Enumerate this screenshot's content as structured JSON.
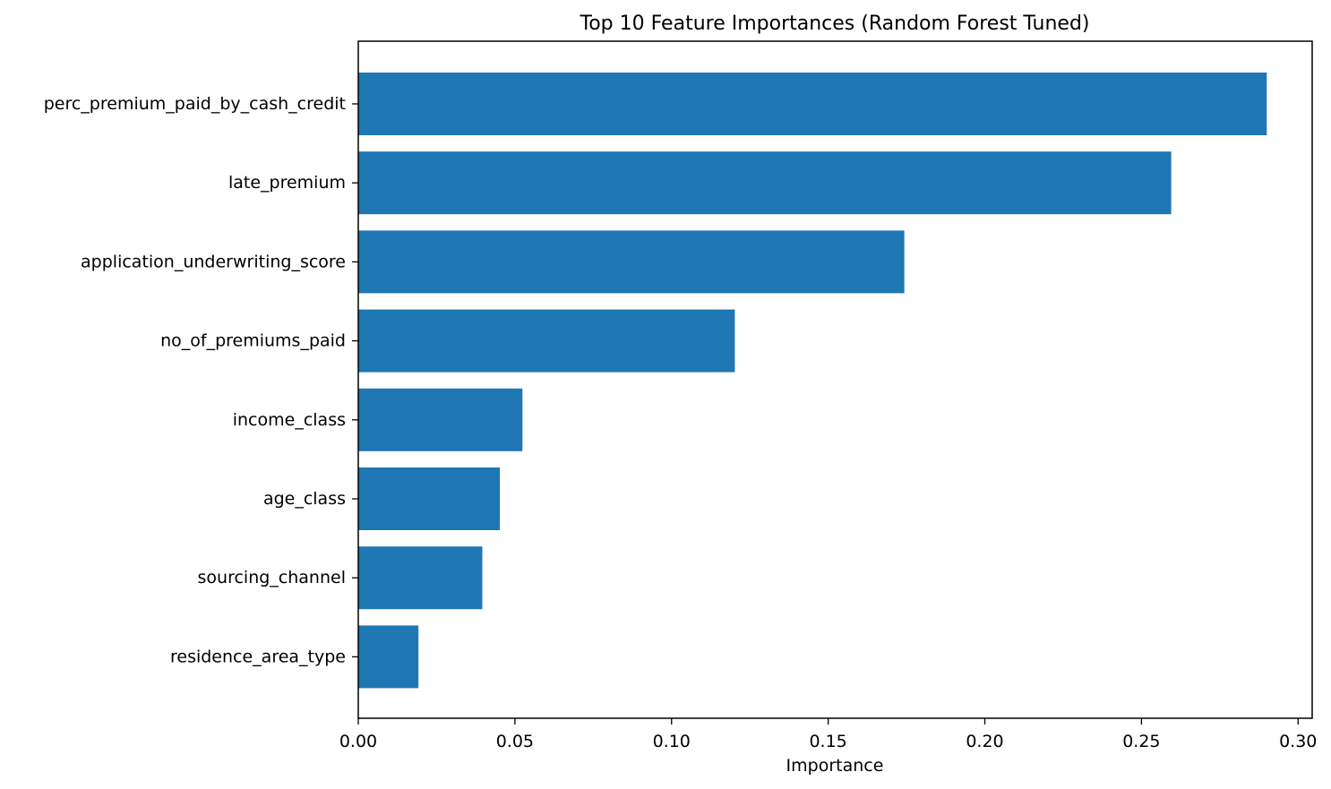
{
  "chart_data": {
    "type": "bar",
    "orientation": "horizontal",
    "title": "Top 10 Feature Importances (Random Forest Tuned)",
    "xlabel": "Importance",
    "ylabel": "",
    "categories": [
      "perc_premium_paid_by_cash_credit",
      "late_premium",
      "application_underwriting_score",
      "no_of_premiums_paid",
      "income_class",
      "age_class",
      "sourcing_channel",
      "residence_area_type"
    ],
    "values": [
      0.29,
      0.2595,
      0.1743,
      0.1202,
      0.0524,
      0.0452,
      0.0396,
      0.0192
    ],
    "xlim": [
      0.0,
      0.3045
    ],
    "xticks": [
      "0.00",
      "0.05",
      "0.10",
      "0.15",
      "0.20",
      "0.25",
      "0.30"
    ],
    "grid": false,
    "bar_color": "#1f77b4"
  }
}
